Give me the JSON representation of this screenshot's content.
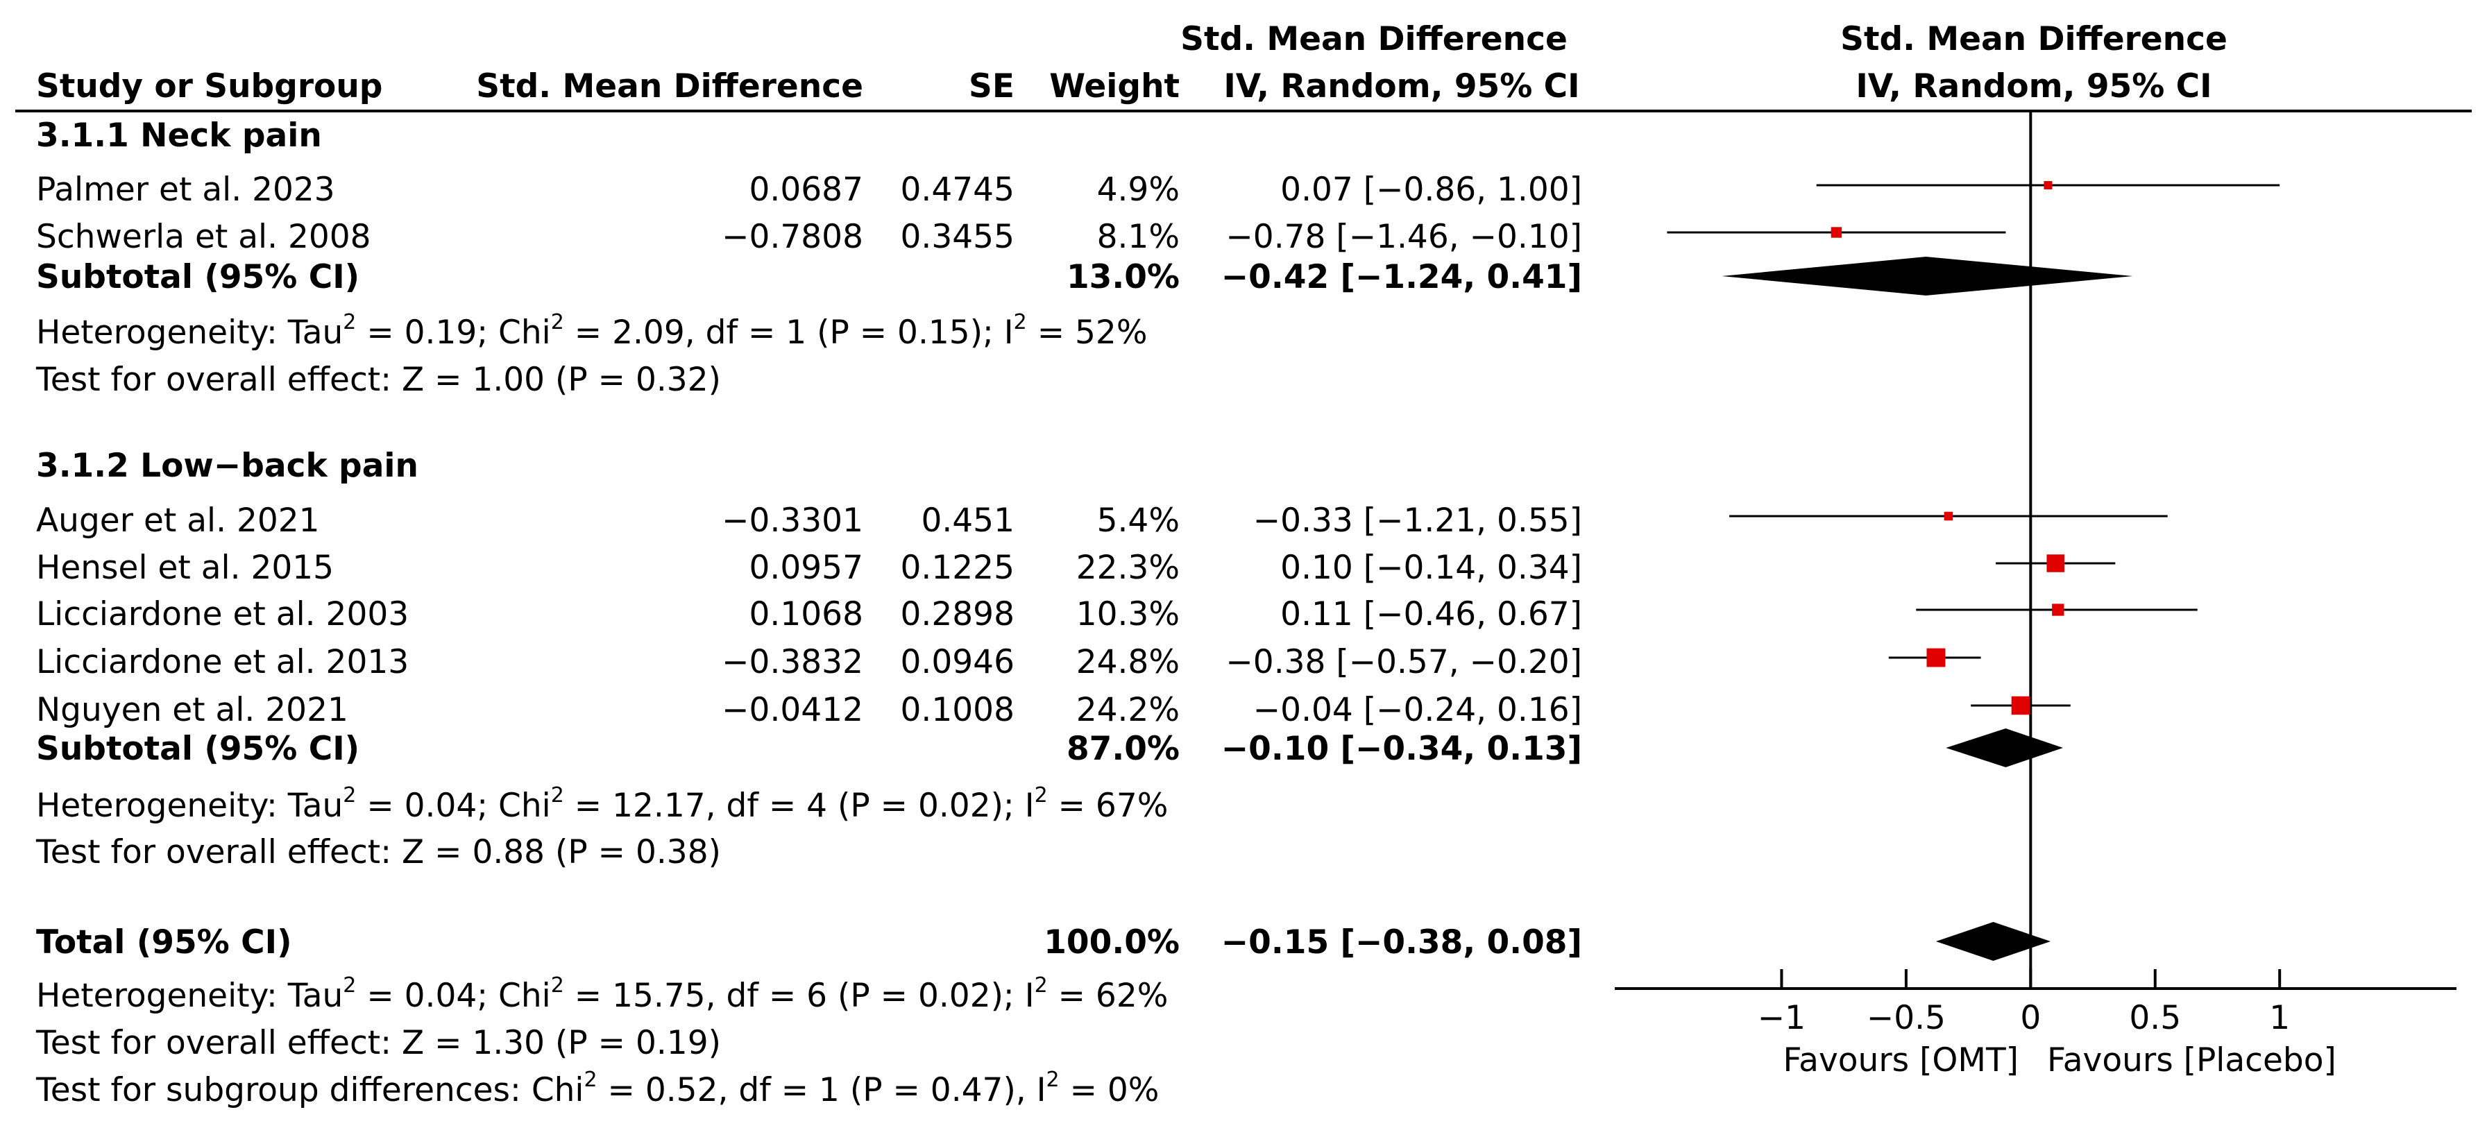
{
  "headers": {
    "study": "Study or Subgroup",
    "smd": "Std. Mean Difference",
    "se": "SE",
    "weight": "Weight",
    "ci_top": "Std. Mean Difference",
    "ci_bottom": "IV, Random, 95% CI",
    "plot_top": "Std. Mean Difference",
    "plot_bottom": "IV, Random, 95% CI"
  },
  "groups": [
    {
      "title": "3.1.1 Neck pain",
      "studies": [
        {
          "name": "Palmer et al. 2023",
          "smd_text": "0.0687",
          "se": "0.4745",
          "weight": "4.9%",
          "ci_text": "0.07 [−0.86, 1.00]"
        },
        {
          "name": "Schwerla et al. 2008",
          "smd_text": "−0.7808",
          "se": "0.3455",
          "weight": "8.1%",
          "ci_text": "−0.78 [−1.46, −0.10]"
        }
      ],
      "subtotal": {
        "label": "Subtotal (95% CI)",
        "weight": "13.0%",
        "ci_text": "−0.42 [−1.24, 0.41]"
      },
      "heterogeneity": {
        "p1": "Heterogeneity: Tau",
        "p2": " = 0.19; Chi",
        "p3": " = 2.09, df = 1 (P = 0.15); I",
        "p4": " = 52%"
      },
      "overall": "Test for overall effect: Z = 1.00 (P = 0.32)"
    },
    {
      "title": "3.1.2 Low−back pain",
      "studies": [
        {
          "name": "Auger et al. 2021",
          "smd_text": "−0.3301",
          "se": "0.451",
          "weight": "5.4%",
          "ci_text": "−0.33 [−1.21, 0.55]"
        },
        {
          "name": "Hensel et al. 2015",
          "smd_text": "0.0957",
          "se": "0.1225",
          "weight": "22.3%",
          "ci_text": "0.10 [−0.14, 0.34]"
        },
        {
          "name": "Licciardone et al. 2003",
          "smd_text": "0.1068",
          "se": "0.2898",
          "weight": "10.3%",
          "ci_text": "0.11 [−0.46, 0.67]"
        },
        {
          "name": "Licciardone et al. 2013",
          "smd_text": "−0.3832",
          "se": "0.0946",
          "weight": "24.8%",
          "ci_text": "−0.38 [−0.57, −0.20]"
        },
        {
          "name": "Nguyen et al. 2021",
          "smd_text": "−0.0412",
          "se": "0.1008",
          "weight": "24.2%",
          "ci_text": "−0.04 [−0.24, 0.16]"
        }
      ],
      "subtotal": {
        "label": "Subtotal (95% CI)",
        "weight": "87.0%",
        "ci_text": "−0.10 [−0.34, 0.13]"
      },
      "heterogeneity": {
        "p1": "Heterogeneity: Tau",
        "p2": " = 0.04; Chi",
        "p3": " = 12.17, df = 4 (P = 0.02); I",
        "p4": " = 67%"
      },
      "overall": "Test for overall effect: Z = 0.88 (P = 0.38)"
    }
  ],
  "total": {
    "label": "Total (95% CI)",
    "weight": "100.0%",
    "ci_text": "−0.15 [−0.38, 0.08]",
    "heterogeneity": {
      "p1": "Heterogeneity: Tau",
      "p2": " = 0.04; Chi",
      "p3": " = 15.75, df = 6 (P = 0.02); I",
      "p4": " = 62%"
    },
    "overall": "Test for overall effect: Z = 1.30 (P = 0.19)",
    "subgroup": {
      "p1": "Test for subgroup differences: Chi",
      "p2": " = 0.52, df = 1 (P = 0.47), I",
      "p3": " = 0%"
    }
  },
  "superscript": "2",
  "axis": {
    "ticks": [
      -1,
      -0.5,
      0,
      0.5,
      1
    ],
    "tick_labels": [
      "−1",
      "−0.5",
      "0",
      "0.5",
      "1"
    ],
    "xlim": [
      -1.67,
      1.71
    ],
    "favours_left": "Favours [OMT]",
    "favours_right": "Favours [Placebo]"
  },
  "colors": {
    "study_marker": "#e00000",
    "diamond": "#000000",
    "lines": "#000000"
  },
  "chart_data": {
    "type": "forest",
    "studies": [
      {
        "name": "Palmer et al. 2023",
        "group": "3.1.1 Neck pain",
        "est": 0.07,
        "low": -0.86,
        "high": 1.0,
        "weight": 4.9
      },
      {
        "name": "Schwerla et al. 2008",
        "group": "3.1.1 Neck pain",
        "est": -0.78,
        "low": -1.46,
        "high": -0.1,
        "weight": 8.1
      },
      {
        "name": "Auger et al. 2021",
        "group": "3.1.2 Low−back pain",
        "est": -0.33,
        "low": -1.21,
        "high": 0.55,
        "weight": 5.4
      },
      {
        "name": "Hensel et al. 2015",
        "group": "3.1.2 Low−back pain",
        "est": 0.1,
        "low": -0.14,
        "high": 0.34,
        "weight": 22.3
      },
      {
        "name": "Licciardone et al. 2003",
        "group": "3.1.2 Low−back pain",
        "est": 0.11,
        "low": -0.46,
        "high": 0.67,
        "weight": 10.3
      },
      {
        "name": "Licciardone et al. 2013",
        "group": "3.1.2 Low−back pain",
        "est": -0.38,
        "low": -0.57,
        "high": -0.2,
        "weight": 24.8
      },
      {
        "name": "Nguyen et al. 2021",
        "group": "3.1.2 Low−back pain",
        "est": -0.04,
        "low": -0.24,
        "high": 0.16,
        "weight": 24.2
      }
    ],
    "pooled": [
      {
        "label": "Subtotal (95% CI)",
        "group": "3.1.1 Neck pain",
        "est": -0.42,
        "low": -1.24,
        "high": 0.41
      },
      {
        "label": "Subtotal (95% CI)",
        "group": "3.1.2 Low−back pain",
        "est": -0.1,
        "low": -0.34,
        "high": 0.13
      },
      {
        "label": "Total (95% CI)",
        "group": "all",
        "est": -0.15,
        "low": -0.38,
        "high": 0.08
      }
    ]
  }
}
